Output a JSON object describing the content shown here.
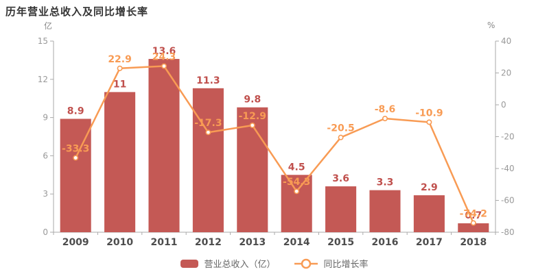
{
  "title": "历年营业总收入及同比增长率",
  "background": "#ffffff",
  "chart_data": {
    "type": "combo_bar_line",
    "categories": [
      "2009",
      "2010",
      "2011",
      "2012",
      "2013",
      "2014",
      "2015",
      "2016",
      "2017",
      "2018"
    ],
    "series": [
      {
        "name": "营业总收入（亿）",
        "type": "bar",
        "axis": "left",
        "color": "#c45955",
        "label_color": "#c0504d",
        "values": [
          8.9,
          11,
          13.6,
          11.3,
          9.8,
          4.5,
          3.6,
          3.3,
          2.9,
          0.7
        ]
      },
      {
        "name": "同比增长率",
        "type": "line",
        "axis": "right",
        "color": "#f89b54",
        "label_color": "#f89b54",
        "marker": "circle-white-fill",
        "values": [
          -33.3,
          22.9,
          24.3,
          -17.3,
          -12.9,
          -54.3,
          -20.5,
          -8.6,
          -10.9,
          -74.2
        ]
      }
    ],
    "left_axis": {
      "unit": "亿",
      "min": 0,
      "max": 15,
      "ticks": [
        0,
        3,
        6,
        9,
        12,
        15
      ]
    },
    "right_axis": {
      "unit": "%",
      "min": -80,
      "max": 40,
      "ticks": [
        -80,
        -60,
        -40,
        -20,
        0,
        20,
        40
      ]
    },
    "grid": false,
    "legend_position": "bottom",
    "axis_color": "#aaaaaa",
    "tick_label_color": "#999999",
    "x_label_color": "#4d4d4d"
  }
}
